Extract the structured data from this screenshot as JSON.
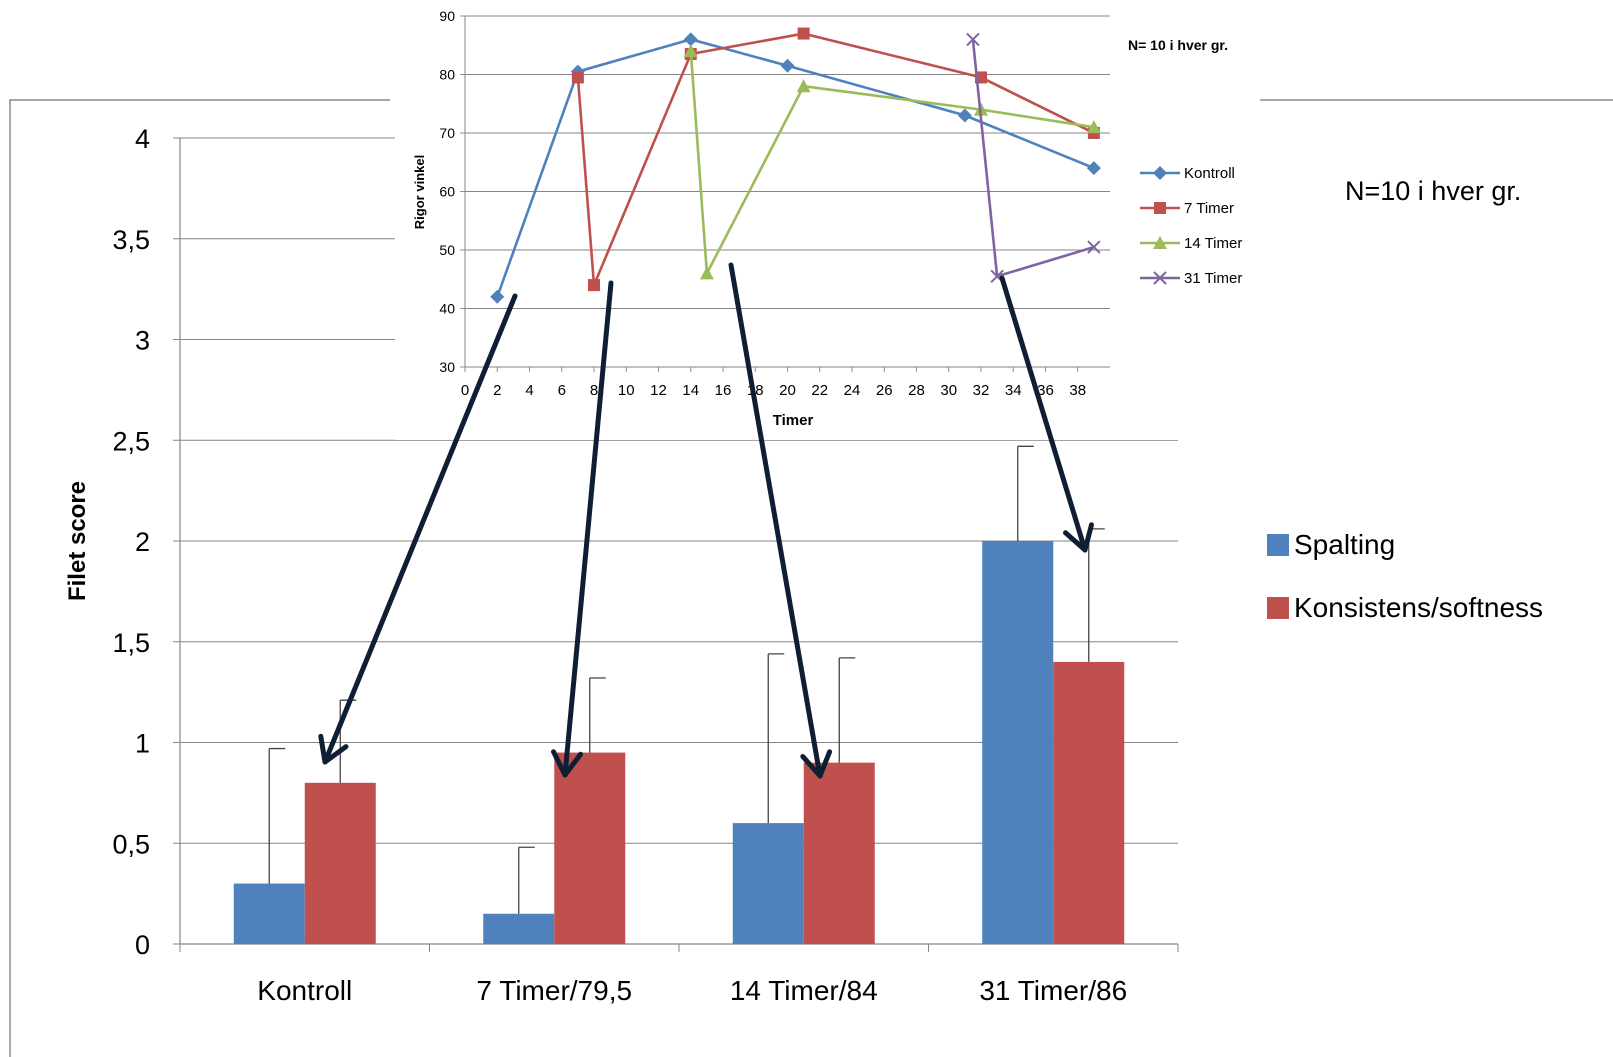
{
  "bar_chart": {
    "n_label": "N=10 i hver gr.",
    "chart_data": {
      "type": "bar",
      "title": "",
      "xlabel": "",
      "ylabel": "Filet score",
      "ylim": [
        0,
        4
      ],
      "grid": true,
      "legend_position": "right",
      "categories": [
        "Kontroll",
        "7 Timer/79,5",
        "14 Timer/84",
        "31 Timer/86"
      ],
      "y_tick_labels": [
        "0",
        "0,5",
        "1",
        "1,5",
        "2",
        "2,5",
        "3",
        "3,5",
        "4"
      ],
      "series": [
        {
          "name": "Spalting",
          "color": "#4f81bd",
          "values": [
            0.3,
            0.15,
            0.6,
            2.0
          ],
          "error_upper": [
            0.97,
            0.48,
            1.44,
            2.47
          ]
        },
        {
          "name": "Konsistens/softness",
          "color": "#c0504d",
          "values": [
            0.8,
            0.95,
            0.9,
            1.4
          ],
          "error_upper": [
            1.21,
            1.32,
            1.42,
            2.06
          ]
        }
      ]
    }
  },
  "line_chart": {
    "n_label": "N= 10 i hver gr.",
    "chart_data": {
      "type": "line",
      "title": "",
      "xlabel": "Timer",
      "ylabel": "Rigor vinkel",
      "ylim": [
        30,
        90
      ],
      "grid": true,
      "legend_position": "right",
      "x_tick_labels": [
        "0",
        "2",
        "4",
        "6",
        "8",
        "10",
        "12",
        "14",
        "16",
        "18",
        "20",
        "22",
        "24",
        "26",
        "28",
        "30",
        "32",
        "34",
        "36",
        "38"
      ],
      "y_tick_labels": [
        "30",
        "40",
        "50",
        "60",
        "70",
        "80",
        "90"
      ],
      "series": [
        {
          "name": "Kontroll",
          "color": "#4f81bd",
          "marker": "diamond",
          "points": [
            [
              2,
              42
            ],
            [
              7,
              80.5
            ],
            [
              14,
              86
            ],
            [
              20,
              81.5
            ],
            [
              31,
              73
            ],
            [
              39,
              64
            ]
          ]
        },
        {
          "name": "7 Timer",
          "color": "#c0504d",
          "marker": "square",
          "points": [
            [
              7,
              79.5
            ],
            [
              8,
              44
            ],
            [
              14,
              83.5
            ],
            [
              21,
              87
            ],
            [
              32,
              79.5
            ],
            [
              39,
              70
            ]
          ]
        },
        {
          "name": "14 Timer",
          "color": "#9bbb59",
          "marker": "triangle",
          "points": [
            [
              14,
              84
            ],
            [
              15,
              46
            ],
            [
              21,
              78
            ],
            [
              32,
              74
            ],
            [
              39,
              71
            ]
          ]
        },
        {
          "name": "31 Timer",
          "color": "#8064a2",
          "marker": "x",
          "points": [
            [
              31.5,
              86
            ],
            [
              33,
              45.5
            ],
            [
              39,
              50.5
            ]
          ]
        }
      ]
    }
  },
  "arrow_color": "#0f1f33"
}
